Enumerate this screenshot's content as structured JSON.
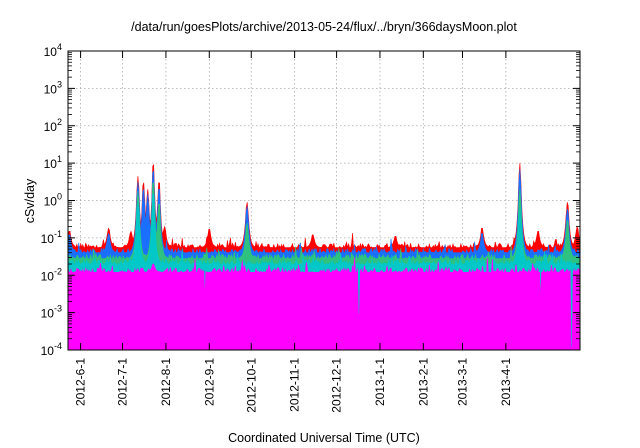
{
  "chart_data": {
    "type": "line",
    "title": "/data/run/goesPlots/archive/2013-05-24/flux/../bryn/366daysMoon.plot",
    "xlabel": "Coordinated Universal Time (UTC)",
    "ylabel": "cSv/day",
    "y_scale": "log",
    "ylim": [
      0.0001,
      10000
    ],
    "xlim": [
      "2012-05-23",
      "2013-05-24"
    ],
    "grid": true,
    "legend": "none",
    "x_tick_labels": [
      "2012-6-1",
      "2012-7-1",
      "2012-8-1",
      "2012-9-1",
      "2012-10-1",
      "2012-11-1",
      "2012-12-1",
      "2013-1-1",
      "2013-2-1",
      "2013-3-1",
      "2013-4-1"
    ],
    "x_tick_dates": [
      "2012-06-01",
      "2012-07-01",
      "2012-08-01",
      "2012-09-01",
      "2012-10-01",
      "2012-11-01",
      "2012-12-01",
      "2013-01-01",
      "2013-02-01",
      "2013-03-01",
      "2013-04-01"
    ],
    "y_ticks": [
      {
        "base": "10",
        "exp": "-4",
        "value": 0.0001
      },
      {
        "base": "10",
        "exp": "-3",
        "value": 0.001
      },
      {
        "base": "10",
        "exp": "-2",
        "value": 0.01
      },
      {
        "base": "10",
        "exp": "-1",
        "value": 0.1
      },
      {
        "base": "10",
        "exp": "0",
        "value": 1
      },
      {
        "base": "10",
        "exp": "1",
        "value": 10
      },
      {
        "base": "10",
        "exp": "2",
        "value": 100
      },
      {
        "base": "10",
        "exp": "3",
        "value": 1000
      },
      {
        "base": "10",
        "exp": "4",
        "value": 10000
      }
    ],
    "series": [
      {
        "color": "#ff0000",
        "baseline": 0.055,
        "events": [
          {
            "date": "2012-05-24",
            "peak": 0.15
          },
          {
            "date": "2012-06-21",
            "peak": 0.18
          },
          {
            "date": "2012-07-07",
            "peak": 0.15
          },
          {
            "date": "2012-07-12",
            "peak": 4.5
          },
          {
            "date": "2012-07-16",
            "peak": 3.0
          },
          {
            "date": "2012-07-19",
            "peak": 2.0
          },
          {
            "date": "2012-07-23",
            "peak": 9.0
          },
          {
            "date": "2012-07-27",
            "peak": 3.0
          },
          {
            "date": "2012-07-31",
            "peak": 0.2
          },
          {
            "date": "2012-09-01",
            "peak": 0.17
          },
          {
            "date": "2012-09-28",
            "peak": 0.9
          },
          {
            "date": "2012-11-14",
            "peak": 0.12
          },
          {
            "date": "2013-01-12",
            "peak": 0.11
          },
          {
            "date": "2013-03-15",
            "peak": 0.18
          },
          {
            "date": "2013-04-11",
            "peak": 10.0
          },
          {
            "date": "2013-04-24",
            "peak": 0.15
          },
          {
            "date": "2013-05-15",
            "peak": 0.9
          },
          {
            "date": "2013-05-22",
            "peak": 0.2
          }
        ]
      },
      {
        "color": "#1a6fff",
        "baseline": 0.04,
        "events": [
          {
            "date": "2012-05-24",
            "peak": 0.12
          },
          {
            "date": "2012-06-21",
            "peak": 0.13
          },
          {
            "date": "2012-07-12",
            "peak": 3.2
          },
          {
            "date": "2012-07-16",
            "peak": 2.0
          },
          {
            "date": "2012-07-19",
            "peak": 1.5
          },
          {
            "date": "2012-07-23",
            "peak": 6.0
          },
          {
            "date": "2012-07-27",
            "peak": 2.0
          },
          {
            "date": "2012-09-28",
            "peak": 0.7
          },
          {
            "date": "2013-03-15",
            "peak": 0.13
          },
          {
            "date": "2013-04-11",
            "peak": 7.0
          },
          {
            "date": "2013-05-15",
            "peak": 0.6
          }
        ]
      },
      {
        "color": "#2ec27e",
        "baseline": 0.028,
        "events": [
          {
            "date": "2012-07-12",
            "peak": 1.8
          },
          {
            "date": "2012-07-23",
            "peak": 3.0
          },
          {
            "date": "2012-07-27",
            "peak": 0.8
          },
          {
            "date": "2012-09-28",
            "peak": 0.25
          },
          {
            "date": "2013-04-11",
            "peak": 2.0
          },
          {
            "date": "2013-05-15",
            "peak": 0.3
          }
        ]
      },
      {
        "color": "#00c8c8",
        "baseline": 0.02,
        "events": [
          {
            "date": "2012-07-12",
            "peak": 1.0
          },
          {
            "date": "2012-07-23",
            "peak": 1.5
          },
          {
            "date": "2013-04-11",
            "peak": 0.6
          }
        ]
      },
      {
        "color": "#ff00ff",
        "baseline": 0.012,
        "floor": 0.005,
        "events": [
          {
            "date": "2012-07-23",
            "peak": 0.02
          },
          {
            "date": "2012-08-29",
            "peak": 0.0025
          },
          {
            "date": "2012-12-17",
            "peak": 0.0009
          },
          {
            "date": "2013-04-26",
            "peak": 0.0022
          },
          {
            "date": "2013-05-18",
            "peak": 0.00012
          }
        ]
      }
    ]
  }
}
